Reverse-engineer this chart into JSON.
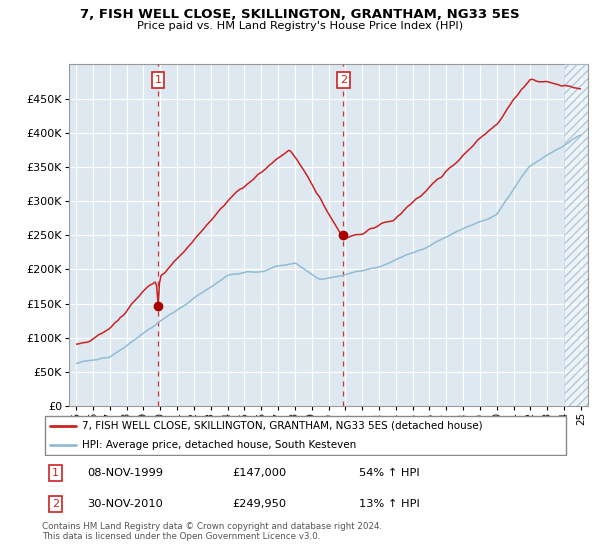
{
  "title": "7, FISH WELL CLOSE, SKILLINGTON, GRANTHAM, NG33 5ES",
  "subtitle": "Price paid vs. HM Land Registry's House Price Index (HPI)",
  "legend_line1": "7, FISH WELL CLOSE, SKILLINGTON, GRANTHAM, NG33 5ES (detached house)",
  "legend_line2": "HPI: Average price, detached house, South Kesteven",
  "annotation1_date": "08-NOV-1999",
  "annotation1_price": 147000,
  "annotation1_pct": "54% ↑ HPI",
  "annotation2_date": "30-NOV-2010",
  "annotation2_price": 249950,
  "annotation2_pct": "13% ↑ HPI",
  "footnote": "Contains HM Land Registry data © Crown copyright and database right 2024.\nThis data is licensed under the Open Government Licence v3.0.",
  "ylim": [
    0,
    500000
  ],
  "yticks": [
    0,
    50000,
    100000,
    150000,
    200000,
    250000,
    300000,
    350000,
    400000,
    450000
  ],
  "background_color": "#ffffff",
  "plot_bg_color": "#dde8f0",
  "grid_color": "#ffffff",
  "hpi_color": "#92bcd4",
  "price_color": "#cc2222",
  "marker_color": "#aa0000",
  "vline_color": "#cc3333",
  "annotation_box_color": "#cc2222",
  "hatch_color": "#b0c8da"
}
